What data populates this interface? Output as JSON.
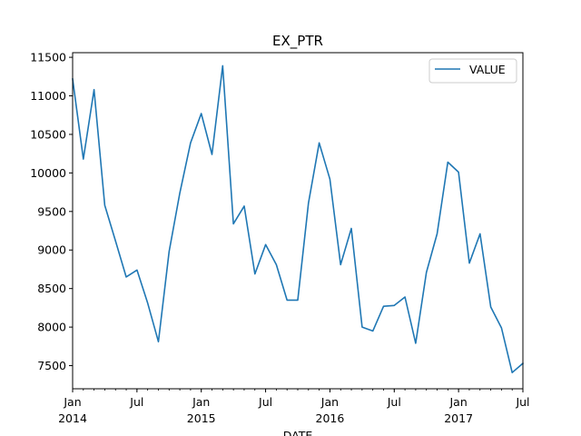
{
  "chart_data": {
    "type": "line",
    "title": "EX_PTR",
    "xlabel": "DATE",
    "ylabel": "",
    "ylim": [
      7200,
      11560
    ],
    "xlim": [
      "2014-01",
      "2017-07"
    ],
    "yticks": [
      7500,
      8000,
      8500,
      9000,
      9500,
      10000,
      10500,
      11000,
      11500
    ],
    "ytick_labels": [
      "7500",
      "8000",
      "8500",
      "9000",
      "9500",
      "10000",
      "10500",
      "11000",
      "11500"
    ],
    "xticks_major": [
      {
        "date": "2014-01",
        "label": "Jan",
        "year": "2014"
      },
      {
        "date": "2014-07",
        "label": "Jul",
        "year": ""
      },
      {
        "date": "2015-01",
        "label": "Jan",
        "year": "2015"
      },
      {
        "date": "2015-07",
        "label": "Jul",
        "year": ""
      },
      {
        "date": "2016-01",
        "label": "Jan",
        "year": "2016"
      },
      {
        "date": "2016-07",
        "label": "Jul",
        "year": ""
      },
      {
        "date": "2017-01",
        "label": "Jan",
        "year": "2017"
      },
      {
        "date": "2017-07",
        "label": "Jul",
        "year": ""
      }
    ],
    "grid": false,
    "legend": "top-right",
    "series": [
      {
        "name": "VALUE",
        "color": "#1f77b4",
        "x": [
          "2014-01",
          "2014-02",
          "2014-03",
          "2014-04",
          "2014-05",
          "2014-06",
          "2014-07",
          "2014-08",
          "2014-09",
          "2014-10",
          "2014-11",
          "2014-12",
          "2015-01",
          "2015-02",
          "2015-03",
          "2015-04",
          "2015-05",
          "2015-06",
          "2015-07",
          "2015-08",
          "2015-09",
          "2015-10",
          "2015-11",
          "2015-12",
          "2016-01",
          "2016-02",
          "2016-03",
          "2016-04",
          "2016-05",
          "2016-06",
          "2016-07",
          "2016-08",
          "2016-09",
          "2016-10",
          "2016-11",
          "2016-12",
          "2017-01",
          "2017-02",
          "2017-03",
          "2017-04",
          "2017-05",
          "2017-06",
          "2017-07"
        ],
        "values": [
          11220,
          10180,
          11080,
          9580,
          9120,
          8650,
          8740,
          8310,
          7810,
          8980,
          9740,
          10390,
          10770,
          10240,
          11390,
          9340,
          9570,
          8690,
          9070,
          8810,
          8350,
          8350,
          9610,
          10390,
          9920,
          8810,
          9280,
          8000,
          7950,
          8270,
          8280,
          8390,
          7790,
          8710,
          9210,
          10140,
          10010,
          8830,
          9210,
          8260,
          7990,
          7410,
          7530
        ]
      }
    ]
  }
}
